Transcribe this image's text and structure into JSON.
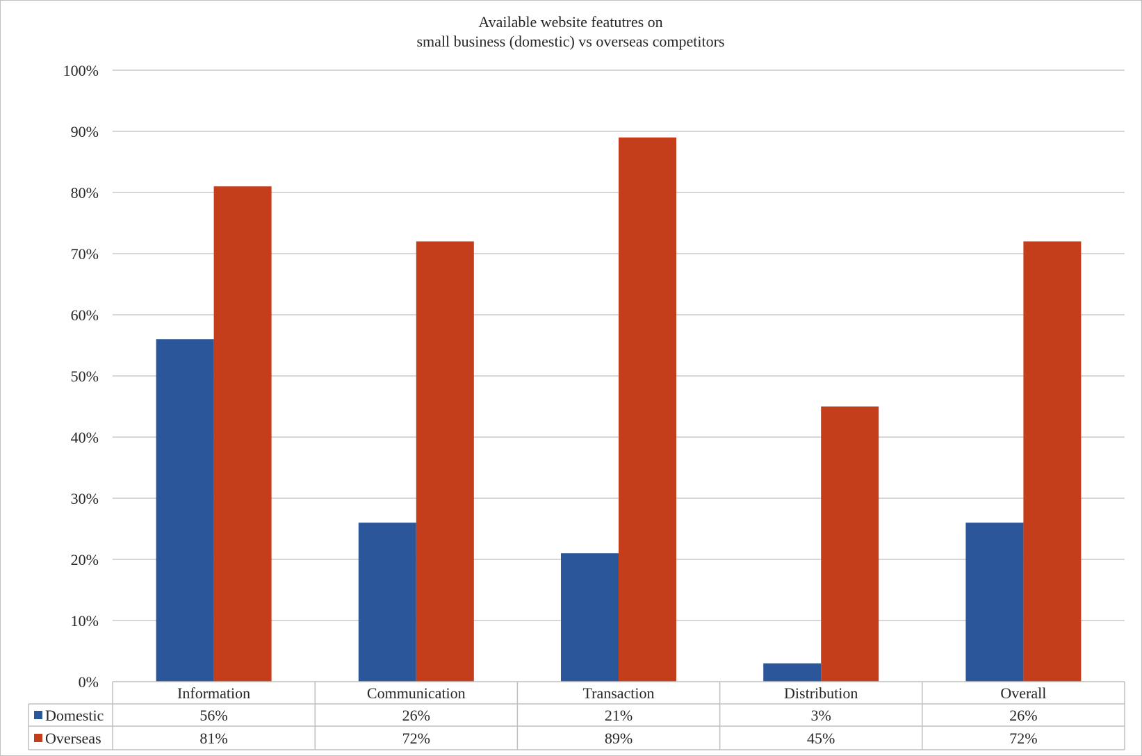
{
  "chart_data": {
    "type": "bar",
    "title": [
      "Available website featutres on",
      "small business (domestic) vs overseas competitors"
    ],
    "categories": [
      "Information",
      "Communication",
      "Transaction",
      "Distribution",
      "Overall"
    ],
    "series": [
      {
        "name": "Domestic",
        "color": "#2b579a",
        "values": [
          56,
          26,
          21,
          3,
          26
        ],
        "labels": [
          "56%",
          "26%",
          "21%",
          "3%",
          "26%"
        ]
      },
      {
        "name": "Overseas",
        "color": "#c43e1c",
        "values": [
          81,
          72,
          89,
          45,
          72
        ],
        "labels": [
          "81%",
          "72%",
          "89%",
          "45%",
          "72%"
        ]
      }
    ],
    "ylim": [
      0,
      100
    ],
    "yticks": [
      0,
      10,
      20,
      30,
      40,
      50,
      60,
      70,
      80,
      90,
      100
    ],
    "ytick_labels": [
      "0%",
      "10%",
      "20%",
      "30%",
      "40%",
      "50%",
      "60%",
      "70%",
      "80%",
      "90%",
      "100%"
    ],
    "grid": true,
    "legend": "data-table"
  }
}
